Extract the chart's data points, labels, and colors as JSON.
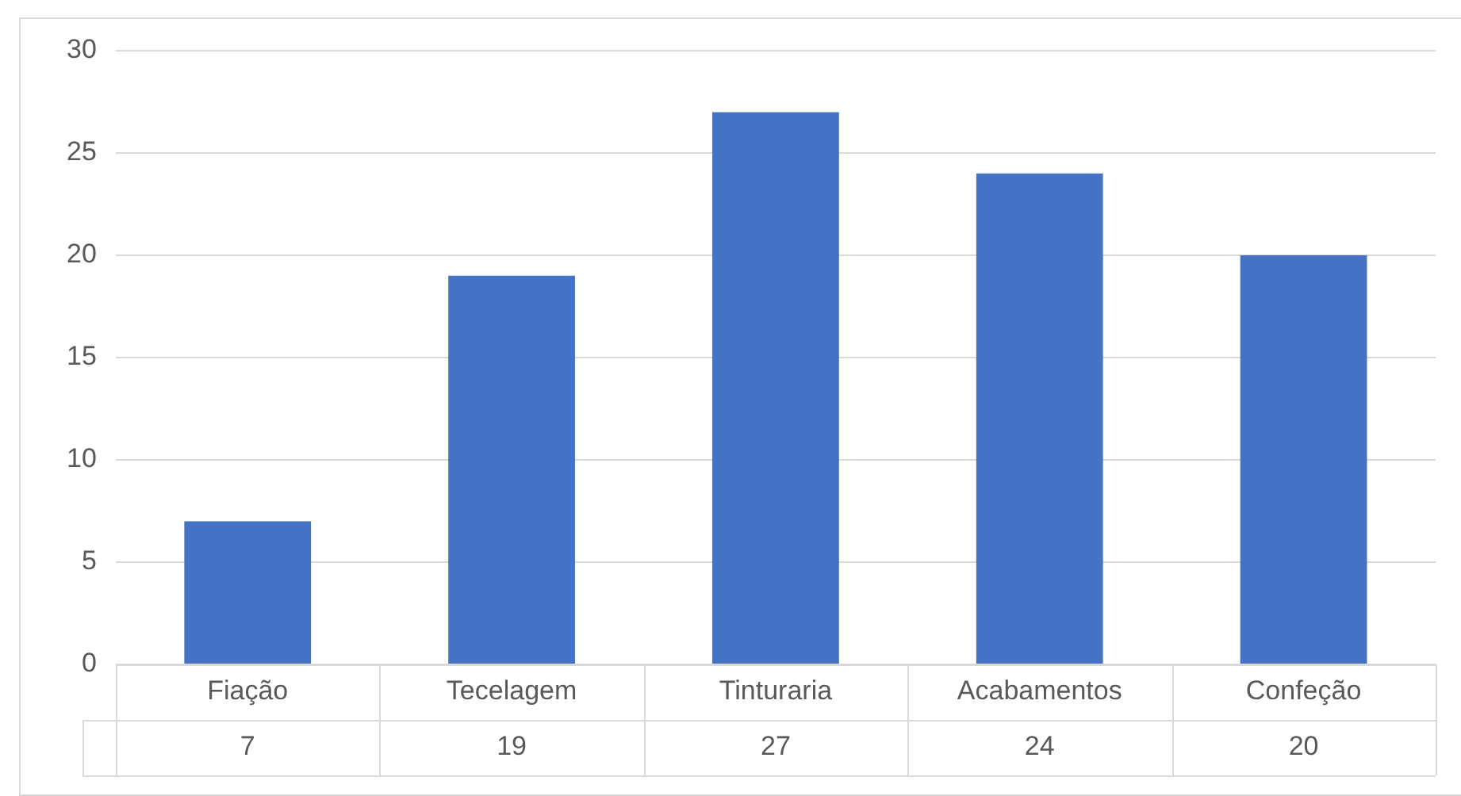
{
  "chart_data": {
    "type": "bar",
    "categories": [
      "Fiação",
      "Tecelagem",
      "Tinturaria",
      "Acabamentos",
      "Confeção"
    ],
    "values": [
      7,
      19,
      27,
      24,
      20
    ],
    "color": "#4472c4",
    "ylim": [
      0,
      30
    ],
    "yticks": [
      0,
      5,
      10,
      15,
      20,
      25,
      30
    ],
    "grid": "y",
    "legend": false,
    "data_labels": true
  }
}
